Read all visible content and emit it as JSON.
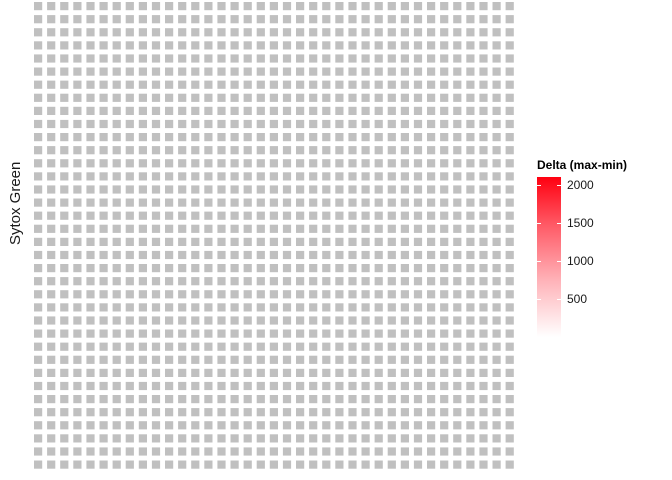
{
  "chart_data": {
    "type": "heatmap",
    "title": "",
    "xlabel": "",
    "ylabel": "Sytox Green",
    "rows": 36,
    "cols": 37,
    "cell_color": "#c0c0c0",
    "grid": false,
    "legend": {
      "title": "Delta (max-min)",
      "placement": "right",
      "range": [
        0,
        2100
      ],
      "ticks": [
        500,
        1000,
        1500,
        2000
      ],
      "low_color": "#ffffff",
      "high_color": "#ff0010"
    }
  }
}
